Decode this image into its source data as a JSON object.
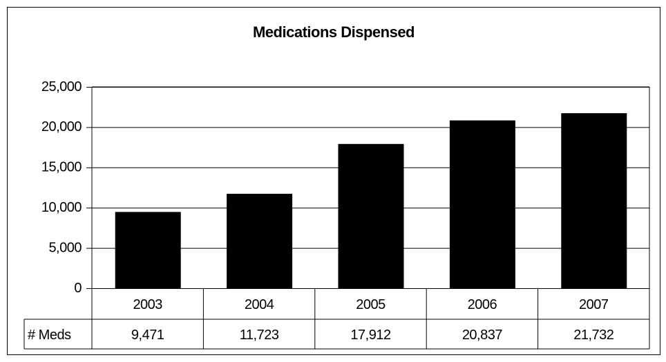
{
  "chart_data": {
    "type": "bar",
    "title": "Medications Dispensed",
    "categories": [
      "2003",
      "2004",
      "2005",
      "2006",
      "2007"
    ],
    "series": [
      {
        "name": "# Meds",
        "color": "#000000",
        "values": [
          9471,
          11723,
          17912,
          20837,
          21732
        ],
        "value_labels": [
          "9,471",
          "11,723",
          "17,912",
          "20,837",
          "21,732"
        ]
      }
    ],
    "ylim": [
      0,
      25000
    ],
    "yticks": [
      0,
      {
        "value": 5000,
        "label": "5,000"
      },
      {
        "value": 10000,
        "label": "10,000"
      },
      {
        "value": 15000,
        "label": "15,000"
      },
      {
        "value": 20000,
        "label": "20,000"
      },
      {
        "value": 25000,
        "label": "25,000"
      }
    ],
    "grid": true
  }
}
